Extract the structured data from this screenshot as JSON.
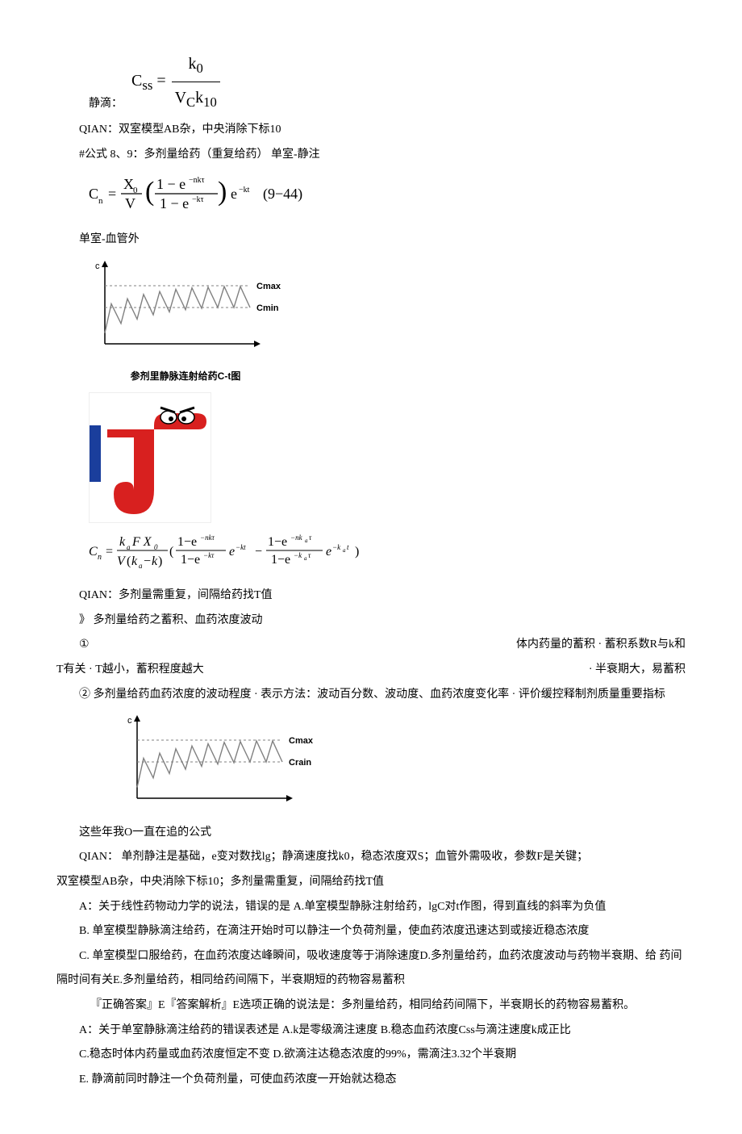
{
  "formula1_label": "静滴：",
  "formula1_lhs": "C",
  "formula1_lhs_sub": "ss",
  "formula1_num": "k",
  "formula1_num_sub": "0",
  "formula1_den_a": "V",
  "formula1_den_a_sub": "C",
  "formula1_den_b": "k",
  "formula1_den_b_sub": "10",
  "line2": "QIAN：双室模型AB杂，中央消除下标10",
  "line3": "#公式 8、9：多剂量给药（重复给药） 单室-静注",
  "formula2_tex": "Cₙ = (X₀ / V) · ((1 − e^{−nkτ}) / (1 − e^{−kτ})) · e^{−kt}   (9−44)",
  "line4": "单室-血管外",
  "chart1": {
    "cmax_label": "Cmax",
    "cmin_label": "Cmin",
    "y_label": "c",
    "data": [
      [
        0,
        15
      ],
      [
        8,
        55
      ],
      [
        20,
        28
      ],
      [
        28,
        62
      ],
      [
        40,
        34
      ],
      [
        48,
        68
      ],
      [
        60,
        40
      ],
      [
        68,
        72
      ],
      [
        80,
        44
      ],
      [
        88,
        75
      ],
      [
        100,
        47
      ],
      [
        108,
        77
      ],
      [
        120,
        49
      ],
      [
        128,
        78
      ],
      [
        140,
        50
      ],
      [
        148,
        79
      ],
      [
        160,
        50
      ],
      [
        168,
        79
      ],
      [
        180,
        50
      ]
    ],
    "cmax_y": 80,
    "cmin_y": 50,
    "colors": {
      "axis": "#000000",
      "curve": "#808080",
      "dash": "#808080"
    }
  },
  "chart1_caption": "参剂里静脉连射给药C-t图",
  "tau_colors": {
    "bg": "#ffffff",
    "red": "#d8201f",
    "blue": "#1a3e9c",
    "black": "#000000",
    "white": "#ffffff"
  },
  "formula3_tex": "Cₙ = (kₐFX₀ / V(kₐ−k)) · ( (1−e^{−nkτ})/(1−e^{−kτ}) · e^{−kt}  −  (1−e^{−nkₐτ})/(1−e^{−kₐτ}) · e^{−kₐt} )",
  "line5": "QIAN：多剂量需重复，间隔给药找T值",
  "line6": "》 多剂量给药之蓄积、血药浓度波动",
  "line7_left": "①",
  "line7_right": "体内药量的蓄积 · 蓄积系数R与k和",
  "line8_left": "T有关 · T越小，蓄积程度越大",
  "line8_right": "· 半衰期大，易蓄积",
  "line9": "② 多剂量给药血药浓度的波动程度 · 表示方法：波动百分数、波动度、血药浓度变化率 · 评价缓控释制剂质量重要指标",
  "chart2": {
    "cmax_label": "Cmax",
    "cmin_label": "Crain",
    "y_label": "c",
    "data": [
      [
        0,
        15
      ],
      [
        8,
        55
      ],
      [
        20,
        28
      ],
      [
        28,
        62
      ],
      [
        40,
        34
      ],
      [
        48,
        68
      ],
      [
        60,
        40
      ],
      [
        68,
        72
      ],
      [
        80,
        44
      ],
      [
        88,
        75
      ],
      [
        100,
        47
      ],
      [
        108,
        77
      ],
      [
        120,
        49
      ],
      [
        128,
        78
      ],
      [
        140,
        50
      ],
      [
        148,
        79
      ],
      [
        160,
        50
      ],
      [
        168,
        79
      ],
      [
        180,
        50
      ]
    ],
    "cmax_y": 80,
    "cmin_y": 50,
    "colors": {
      "axis": "#000000",
      "curve": "#808080",
      "dash": "#808080"
    }
  },
  "line10": "这些年我O一直在追的公式",
  "line11": "QIAN：  单剂静注是基础，e变对数找lg；静滴速度找k0，稳态浓度双S；血管外需吸收，参数F是关键；",
  "line12": "双室模型AB杂，中央消除下标10；多剂量需重复，间隔给药找T值",
  "line13": "A：关于线性药物动力学的说法，错误的是 A.单室模型静脉注射给药，lgC对t作图，得到直线的斜率为负值",
  "line14": "B. 单室模型静脉滴注给药，在滴注开始时可以静注一个负荷剂量，使血药浓度迅速达到或接近稳态浓度",
  "line15": "C. 单室模型口服给药，在血药浓度达峰瞬间，吸收速度等于消除速度D.多剂量给药，血药浓度波动与药物半衰期、给 药间",
  "line16": "隔时间有关E.多剂量给药，相同给药间隔下，半衰期短的药物容易蓄积",
  "line17": "『正确答案』E『答案解析』E选项正确的说法是：多剂量给药，相同给药间隔下，半衰期长的药物容易蓄积。",
  "line18": "A：关于单室静脉滴注给药的错误表述是    A.k是零级滴注速度 B.稳态血药浓度Css与滴注速度k成正比",
  "line19": "C.稳态时体内药量或血药浓度恒定不变 D.欲滴注达稳态浓度的99%，需滴注3.32个半衰期",
  "line20": "E. 静滴前同时静注一个负荷剂量，可使血药浓度一开始就达稳态"
}
